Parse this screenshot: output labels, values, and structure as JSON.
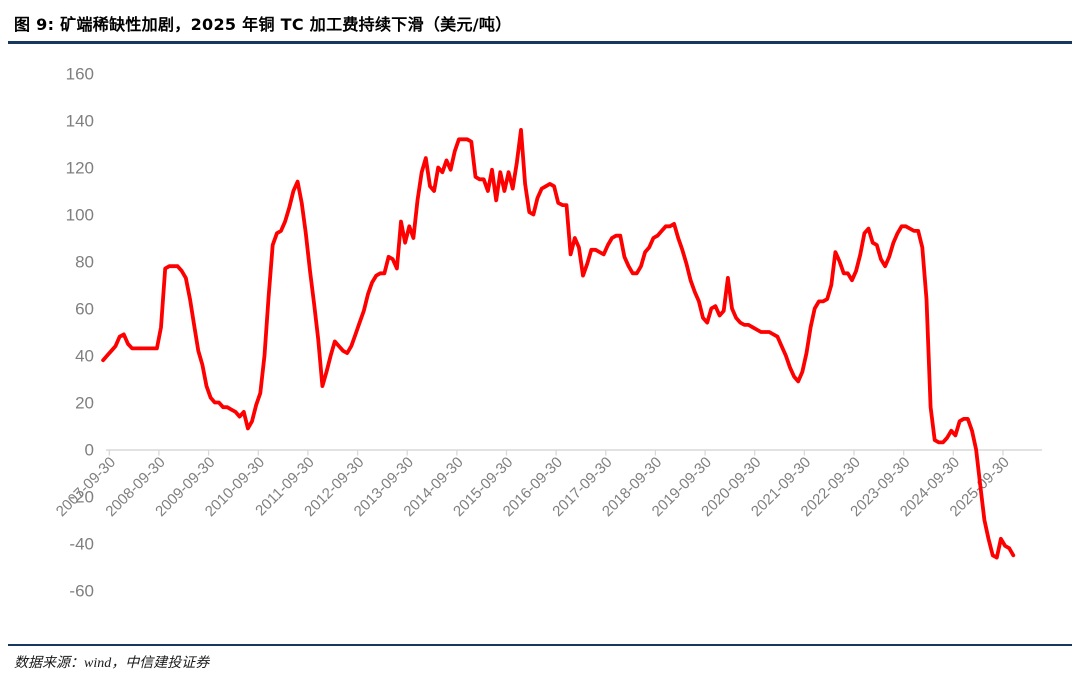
{
  "figure": {
    "title": "图 9: 矿端稀缺性加剧，2025 年铜 TC 加工费持续下滑（美元/吨）",
    "source": "数据来源：wind，中信建投证券",
    "accent_color": "#17375E",
    "background_color": "#FFFFFF"
  },
  "chart_data": {
    "type": "line",
    "title": "矿端稀缺性加剧，2025 年铜 TC 加工费持续下滑",
    "unit": "美元/吨",
    "grid": false,
    "legend_position": "none",
    "line_color": "#FF0000",
    "axis_color": "#D9D9D9",
    "tick_label_color": "#7F7F7F",
    "ylim": [
      -60,
      160
    ],
    "y_ticks": [
      160,
      140,
      120,
      100,
      80,
      60,
      40,
      20,
      0,
      -20,
      -40,
      -60
    ],
    "x_tick_labels": [
      "2007-09-30",
      "2008-09-30",
      "2009-09-30",
      "2010-09-30",
      "2011-09-30",
      "2012-09-30",
      "2013-09-30",
      "2014-09-30",
      "2015-09-30",
      "2016-09-30",
      "2017-09-30",
      "2018-09-30",
      "2019-09-30",
      "2020-09-30",
      "2021-09-30",
      "2022-09-30",
      "2023-09-30",
      "2024-09-30",
      "2025-09-30"
    ],
    "series": {
      "name": "铜 TC 加工费（美元/吨）",
      "start_year": 2007,
      "start_month": 8,
      "freq": "monthly",
      "values": [
        38,
        40,
        42,
        44,
        48,
        49,
        45,
        43,
        43,
        43,
        43,
        43,
        43,
        43,
        52,
        77,
        78,
        78,
        78,
        76,
        73,
        64,
        53,
        42,
        36,
        27,
        22,
        20,
        20,
        18,
        18,
        17,
        16,
        14,
        16,
        9,
        12,
        19,
        24,
        40,
        65,
        87,
        92,
        93,
        97,
        103,
        110,
        114,
        105,
        92,
        76,
        62,
        47,
        27,
        33,
        40,
        46,
        44,
        42,
        41,
        44,
        49,
        54,
        59,
        66,
        71,
        74,
        75,
        75,
        82,
        81,
        77,
        97,
        88,
        95,
        90,
        106,
        118,
        124,
        112,
        110,
        120,
        118,
        123,
        119,
        127,
        132,
        132,
        132,
        131,
        116,
        115,
        115,
        110,
        119,
        106,
        118,
        110,
        118,
        111,
        122,
        136,
        113,
        101,
        100,
        107,
        111,
        112,
        113,
        112,
        105,
        104,
        104,
        83,
        90,
        86,
        74,
        79,
        85,
        85,
        84,
        83,
        87,
        90,
        91,
        91,
        82,
        78,
        75,
        75,
        78,
        84,
        86,
        90,
        91,
        93,
        95,
        95,
        96,
        90,
        85,
        79,
        72,
        67,
        63,
        56,
        54,
        60,
        61,
        57,
        59,
        73,
        60,
        56,
        54,
        53,
        53,
        52,
        51,
        50,
        50,
        50,
        49,
        48,
        44,
        40,
        35,
        31,
        29,
        33,
        41,
        52,
        60,
        63,
        63,
        64,
        70,
        84,
        80,
        75,
        75,
        72,
        76,
        83,
        92,
        94,
        88,
        87,
        81,
        78,
        82,
        88,
        92,
        95,
        95,
        94,
        93,
        93,
        86,
        64,
        18,
        4,
        3,
        3,
        5,
        8,
        6,
        12,
        13,
        13,
        8,
        0,
        -15,
        -30,
        -38,
        -45,
        -46,
        -38,
        -41,
        -42,
        -45
      ]
    }
  }
}
